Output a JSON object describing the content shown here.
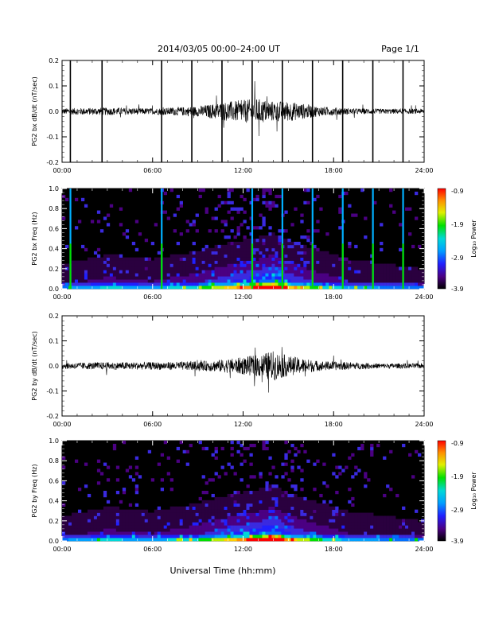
{
  "header": {
    "title": "2014/03/05  00:00–24:00 UT",
    "page": "Page 1/1"
  },
  "xlabel": "Universal Time (hh:mm)",
  "colors": {
    "background": "#ffffff",
    "trace": "#000000",
    "spectrogram_background": "#000000"
  },
  "chart_data": [
    {
      "type": "line",
      "ylabel": "PG2 bx dB/dt (nT/sec)",
      "xlim": [
        0,
        24
      ],
      "ylim": [
        -0.2,
        0.2
      ],
      "xticks": [
        "00:00",
        "06:00",
        "12:00",
        "18:00",
        "24:00"
      ],
      "yticks": [
        "-0.2",
        "-0.1",
        "0.0",
        "0.1",
        "0.2"
      ],
      "spikes_hours": [
        0.55,
        2.65,
        6.6,
        8.6,
        10.6,
        12.6,
        14.6,
        16.6,
        18.6,
        20.6,
        22.6
      ],
      "noise_envelope": {
        "x": [
          0,
          3,
          6,
          9,
          10.5,
          12,
          13,
          14,
          15,
          16,
          17,
          19,
          21,
          24
        ],
        "amplitude": [
          0.012,
          0.015,
          0.012,
          0.02,
          0.035,
          0.045,
          0.05,
          0.04,
          0.04,
          0.03,
          0.02,
          0.012,
          0.01,
          0.01
        ]
      }
    },
    {
      "type": "heatmap",
      "ylabel": "PG2 bx Freq (Hz)",
      "xlim": [
        0,
        24
      ],
      "ylim": [
        0.0,
        1.0
      ],
      "xticks": [
        "00:00",
        "06:00",
        "12:00",
        "18:00",
        "24:00"
      ],
      "yticks": [
        "0.0",
        "0.2",
        "0.4",
        "0.6",
        "0.8",
        "1.0"
      ],
      "vertical_streaks_hours": [
        0.55,
        6.6,
        12.6,
        14.6,
        16.6,
        18.6,
        20.6,
        22.6
      ],
      "colorbar": {
        "label": "Log₁₀ Power",
        "ticks": [
          "-0.9",
          "-1.9",
          "-2.9",
          "-3.9"
        ],
        "range": [
          -3.9,
          -0.9
        ]
      }
    },
    {
      "type": "line",
      "ylabel": "PG2 by dB/dt (nT/sec)",
      "xlim": [
        0,
        24
      ],
      "ylim": [
        -0.2,
        0.2
      ],
      "xticks": [
        "00:00",
        "06:00",
        "12:00",
        "18:00",
        "24:00"
      ],
      "yticks": [
        "-0.2",
        "-0.1",
        "0.0",
        "0.1",
        "0.2"
      ],
      "noise_envelope": {
        "x": [
          0,
          3,
          6,
          9,
          10.5,
          12,
          13,
          14,
          15,
          16,
          17,
          19,
          21,
          24
        ],
        "amplitude": [
          0.012,
          0.015,
          0.015,
          0.018,
          0.025,
          0.035,
          0.045,
          0.06,
          0.04,
          0.03,
          0.02,
          0.015,
          0.01,
          0.01
        ]
      }
    },
    {
      "type": "heatmap",
      "ylabel": "PG2 by Freq (Hz)",
      "xlim": [
        0,
        24
      ],
      "ylim": [
        0.0,
        1.0
      ],
      "xticks": [
        "00:00",
        "06:00",
        "12:00",
        "18:00",
        "24:00"
      ],
      "yticks": [
        "0.0",
        "0.2",
        "0.4",
        "0.6",
        "0.8",
        "1.0"
      ],
      "colorbar": {
        "label": "Log₁₀ Power",
        "ticks": [
          "-0.9",
          "-1.9",
          "-2.9",
          "-3.9"
        ],
        "range": [
          -3.9,
          -0.9
        ]
      }
    }
  ]
}
